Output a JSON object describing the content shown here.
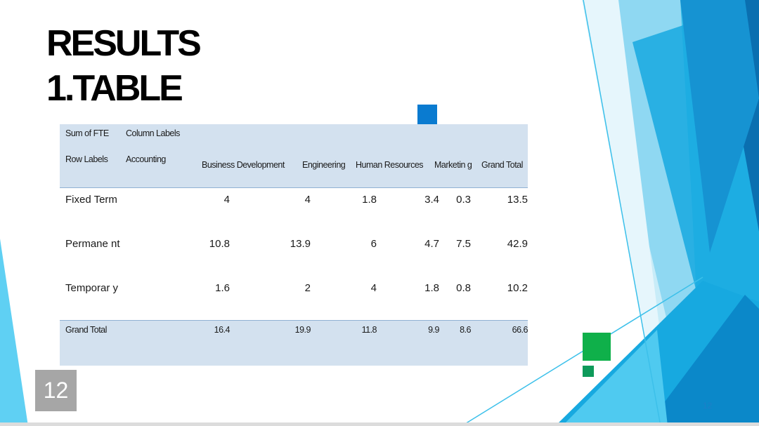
{
  "title": [
    "RESULTS",
    "1.TABLE"
  ],
  "slide_number": "12",
  "slide_number_small": "12",
  "pivot": {
    "corner_label": "Sum of FTE",
    "column_labels_caption": "Column Labels",
    "row_labels_caption": "Row Labels",
    "columns": [
      "Accounting",
      "Business Development",
      "Engineering",
      "Human Resources",
      "Marketin g",
      "Grand Total"
    ],
    "rows": [
      {
        "label": "Fixed Term",
        "values": [
          "4",
          "4",
          "1.8",
          "3.4",
          "0.3",
          "13.5"
        ]
      },
      {
        "label": "Permane nt",
        "values": [
          "10.8",
          "13.9",
          "6",
          "4.7",
          "7.5",
          "42.9"
        ]
      },
      {
        "label": "Temporar y",
        "values": [
          "1.6",
          "2",
          "4",
          "1.8",
          "0.8",
          "10.2"
        ]
      }
    ],
    "total": {
      "label": "Grand Total",
      "values": [
        "16.4",
        "19.9",
        "11.8",
        "9.9",
        "8.6",
        "66.6"
      ]
    }
  },
  "colors": {
    "table_fill": "#d3e1ef",
    "accent_blue": "#0a7bd0",
    "accent_green": "#0fb04a",
    "badge_gray": "#a6a6a6"
  }
}
